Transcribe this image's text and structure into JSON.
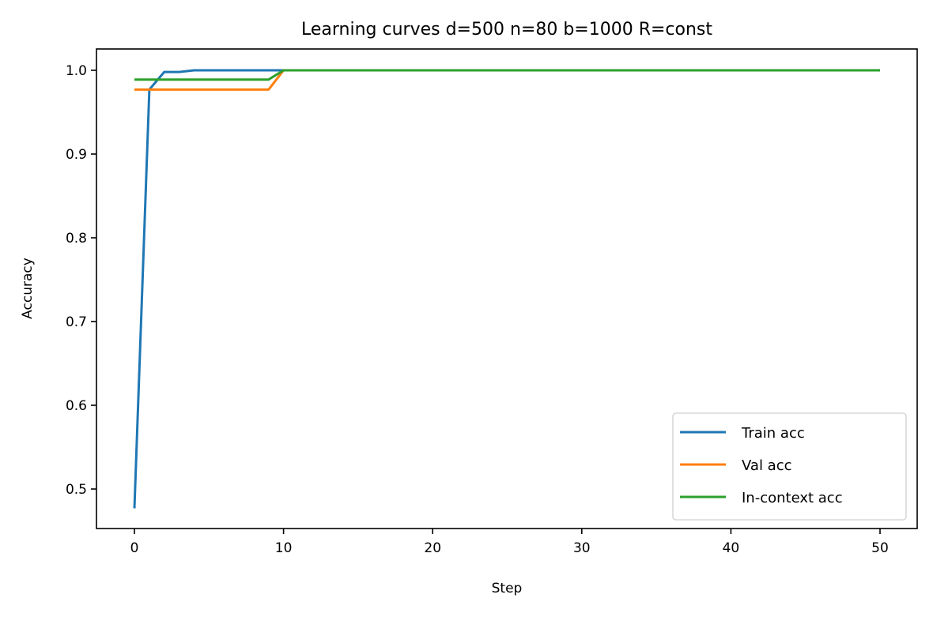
{
  "chart_data": {
    "type": "line",
    "title": "Learning curves d=500 n=80 b=1000 R=const",
    "xlabel": "Step",
    "ylabel": "Accuracy",
    "xlim": [
      -2.5,
      52.5
    ],
    "ylim": [
      0.452,
      1.026
    ],
    "xticks": [
      0,
      10,
      20,
      30,
      40,
      50
    ],
    "yticks": [
      0.5,
      0.6,
      0.7,
      0.8,
      0.9,
      1.0
    ],
    "xtick_labels": [
      "0",
      "10",
      "20",
      "30",
      "40",
      "50"
    ],
    "ytick_labels": [
      "0.5",
      "0.6",
      "0.7",
      "0.8",
      "0.9",
      "1.0"
    ],
    "grid": false,
    "legend_position": "lower right",
    "series": [
      {
        "name": "Train acc",
        "color": "#1f77b4",
        "x": [
          0,
          1,
          2,
          3,
          4,
          10,
          50
        ],
        "values": [
          0.477,
          0.977,
          0.998,
          0.998,
          1.0,
          1.0,
          1.0
        ]
      },
      {
        "name": "Val acc",
        "color": "#ff7f0e",
        "x": [
          0,
          9,
          10,
          50
        ],
        "values": [
          0.977,
          0.977,
          1.0,
          1.0
        ]
      },
      {
        "name": "In-context acc",
        "color": "#2ca02c",
        "x": [
          0,
          9,
          10,
          50
        ],
        "values": [
          0.989,
          0.989,
          1.0,
          1.0
        ]
      }
    ]
  }
}
